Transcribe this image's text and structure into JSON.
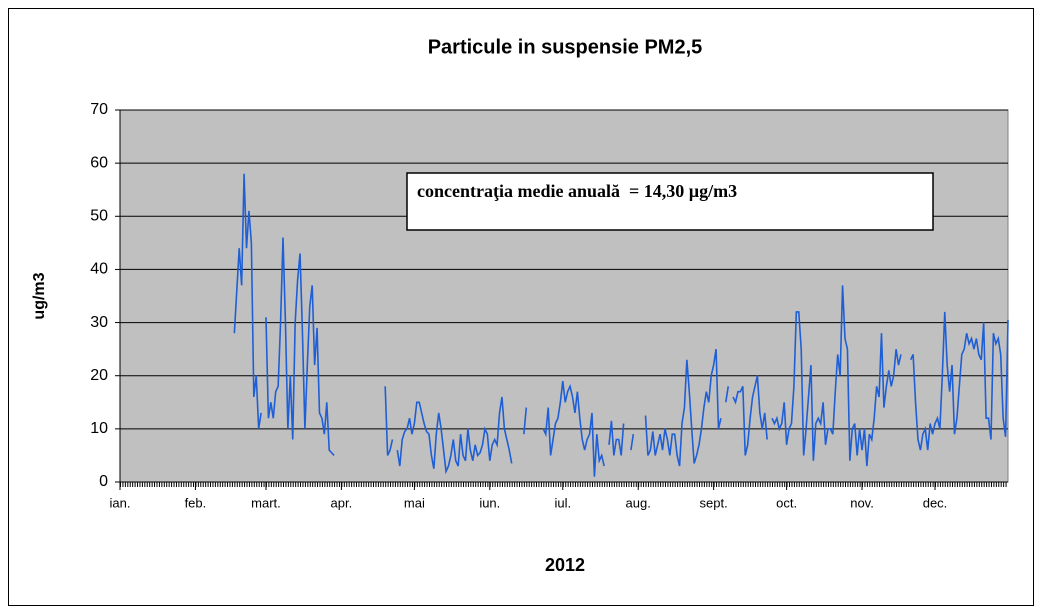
{
  "chart_data": {
    "type": "line",
    "title": "Particule in suspensie PM2,5",
    "ylabel": "ug/m3",
    "xlabel": "2012",
    "annotation": "concentraţia medie anuală  = 14,30 µg/m3",
    "xlim": [
      1,
      366
    ],
    "xticks": [
      {
        "value": 1,
        "label": "ian."
      },
      {
        "value": 32,
        "label": "feb."
      },
      {
        "value": 61,
        "label": "mart."
      },
      {
        "value": 92,
        "label": "apr."
      },
      {
        "value": 122,
        "label": "mai"
      },
      {
        "value": 153,
        "label": "iun."
      },
      {
        "value": 183,
        "label": "iul."
      },
      {
        "value": 214,
        "label": "aug."
      },
      {
        "value": 245,
        "label": "sept."
      },
      {
        "value": 275,
        "label": "oct."
      },
      {
        "value": 306,
        "label": "nov."
      },
      {
        "value": 336,
        "label": "dec."
      }
    ],
    "ylim": [
      0,
      70
    ],
    "yticks": [
      0,
      10,
      20,
      30,
      40,
      50,
      60,
      70
    ],
    "grid": true,
    "background": "#c0c0c0",
    "x": [
      48,
      49,
      50,
      51,
      52,
      53,
      54,
      55,
      56,
      57,
      58,
      59,
      60,
      61,
      62,
      63,
      64,
      65,
      66,
      67,
      68,
      69,
      70,
      71,
      72,
      73,
      74,
      75,
      76,
      77,
      78,
      79,
      80,
      81,
      82,
      83,
      84,
      85,
      86,
      87,
      88,
      89,
      90,
      91,
      92,
      93,
      94,
      95,
      96,
      97,
      98,
      99,
      100,
      101,
      102,
      103,
      104,
      105,
      106,
      107,
      108,
      109,
      110,
      111,
      112,
      113,
      114,
      115,
      116,
      117,
      118,
      119,
      120,
      121,
      122,
      123,
      124,
      125,
      126,
      127,
      128,
      129,
      130,
      131,
      132,
      133,
      134,
      135,
      136,
      137,
      138,
      139,
      140,
      141,
      142,
      143,
      144,
      145,
      146,
      147,
      148,
      149,
      150,
      151,
      152,
      153,
      154,
      155,
      156,
      157,
      158,
      159,
      160,
      161,
      162,
      163,
      164,
      165,
      166,
      167,
      168,
      169,
      170,
      171,
      172,
      173,
      174,
      175,
      176,
      177,
      178,
      179,
      180,
      181,
      182,
      183,
      184,
      185,
      186,
      187,
      188,
      189,
      190,
      191,
      192,
      193,
      194,
      195,
      196,
      197,
      198,
      199,
      200,
      201,
      202,
      203,
      204,
      205,
      206,
      207,
      208,
      209,
      210,
      211,
      212,
      213,
      214,
      215,
      216,
      217,
      218,
      219,
      220,
      221,
      222,
      223,
      224,
      225,
      226,
      227,
      228,
      229,
      230,
      231,
      232,
      233,
      234,
      235,
      236,
      237,
      238,
      239,
      240,
      241,
      242,
      243,
      244,
      245,
      246,
      247,
      248,
      249,
      250,
      251,
      252,
      253,
      254,
      255,
      256,
      257,
      258,
      259,
      260,
      261,
      262,
      263,
      264,
      265,
      266,
      267,
      268,
      269,
      270,
      271,
      272,
      273,
      274,
      275,
      276,
      277,
      278,
      279,
      280,
      281,
      282,
      283,
      284,
      285,
      286,
      287,
      288,
      289,
      290,
      291,
      292,
      293,
      294,
      295,
      296,
      297,
      298,
      299,
      300,
      301,
      302,
      303,
      304,
      305,
      306,
      307,
      308,
      309,
      310,
      311,
      312,
      313,
      314,
      315,
      316,
      317,
      318,
      319,
      320,
      321,
      322,
      323,
      324,
      325,
      326,
      327,
      328,
      329,
      330,
      331,
      332,
      333,
      334,
      335,
      336,
      337,
      338,
      339,
      340,
      341,
      342,
      343,
      344,
      345,
      346,
      347,
      348,
      349,
      350,
      351,
      352,
      353,
      354,
      355,
      356,
      357,
      358,
      359,
      360,
      361,
      362,
      363,
      364,
      365,
      366
    ],
    "series": [
      {
        "name": "PM2,5",
        "color": "#1f5fd6",
        "values": [
          28,
          36,
          44,
          37,
          58,
          44,
          51,
          45,
          16,
          20,
          10,
          13,
          null,
          31,
          12,
          15,
          12,
          17,
          18,
          30,
          46,
          30,
          10,
          20,
          8,
          30,
          38,
          43,
          28,
          10,
          22,
          33,
          37,
          22,
          29,
          13,
          12,
          9,
          15,
          6,
          5.5,
          5,
          null,
          10.5,
          null,
          null,
          null,
          null,
          null,
          null,
          null,
          null,
          null,
          null,
          null,
          null,
          null,
          null,
          null,
          null,
          null,
          null,
          18,
          5,
          6,
          8,
          null,
          6,
          3,
          8,
          9.5,
          10,
          12,
          9,
          11,
          15,
          15,
          13,
          11,
          9.5,
          9,
          5,
          2.5,
          9,
          13,
          10,
          6,
          2,
          3,
          5,
          8,
          4,
          3,
          9,
          5,
          4,
          10,
          6,
          4,
          7,
          5,
          5.5,
          7,
          10,
          9,
          4,
          7,
          8,
          7,
          13,
          16,
          10,
          8,
          6,
          3.5,
          null,
          null,
          null,
          null,
          9,
          14,
          null,
          null,
          null,
          null,
          null,
          null,
          10,
          9,
          14,
          5,
          8,
          11,
          12,
          15,
          19,
          15,
          17,
          18,
          16,
          13,
          17,
          12,
          8,
          6,
          8,
          9,
          13,
          1,
          9,
          4,
          5,
          3,
          null,
          7,
          11.5,
          5,
          8,
          8,
          5,
          11,
          null,
          null,
          6,
          9,
          null,
          null,
          null,
          null,
          12.5,
          5,
          6,
          9.5,
          5,
          7,
          9,
          6,
          10,
          8,
          5,
          9,
          9,
          5,
          3,
          11,
          14,
          23,
          17,
          10,
          3.5,
          5,
          7,
          10,
          14,
          17,
          15,
          20,
          22,
          25,
          10,
          12,
          null,
          15,
          18,
          null,
          16,
          15,
          17,
          17,
          18,
          5,
          7,
          12,
          16,
          18,
          20,
          13,
          10,
          13,
          8,
          null,
          12,
          11,
          12,
          10,
          11,
          15,
          7,
          10,
          11,
          18,
          32,
          32,
          25,
          5,
          10,
          16,
          22,
          4,
          11,
          12,
          11,
          15,
          7,
          10,
          10,
          9,
          17,
          24,
          20,
          37,
          27,
          25,
          4,
          10,
          11,
          5,
          10,
          6,
          10,
          3,
          9,
          8,
          12,
          18,
          16,
          28,
          14,
          18,
          21,
          18,
          20,
          25,
          22,
          24,
          null,
          null,
          null,
          23,
          24,
          15,
          8,
          6,
          9,
          10,
          6,
          11,
          9,
          11,
          12,
          10,
          20,
          32,
          22,
          17,
          22,
          9,
          12,
          18,
          24,
          25,
          28,
          26,
          27,
          25,
          27,
          24,
          23,
          30,
          12,
          12,
          8,
          28,
          26,
          27,
          24,
          12,
          8.5,
          30.5
        ]
      }
    ]
  }
}
